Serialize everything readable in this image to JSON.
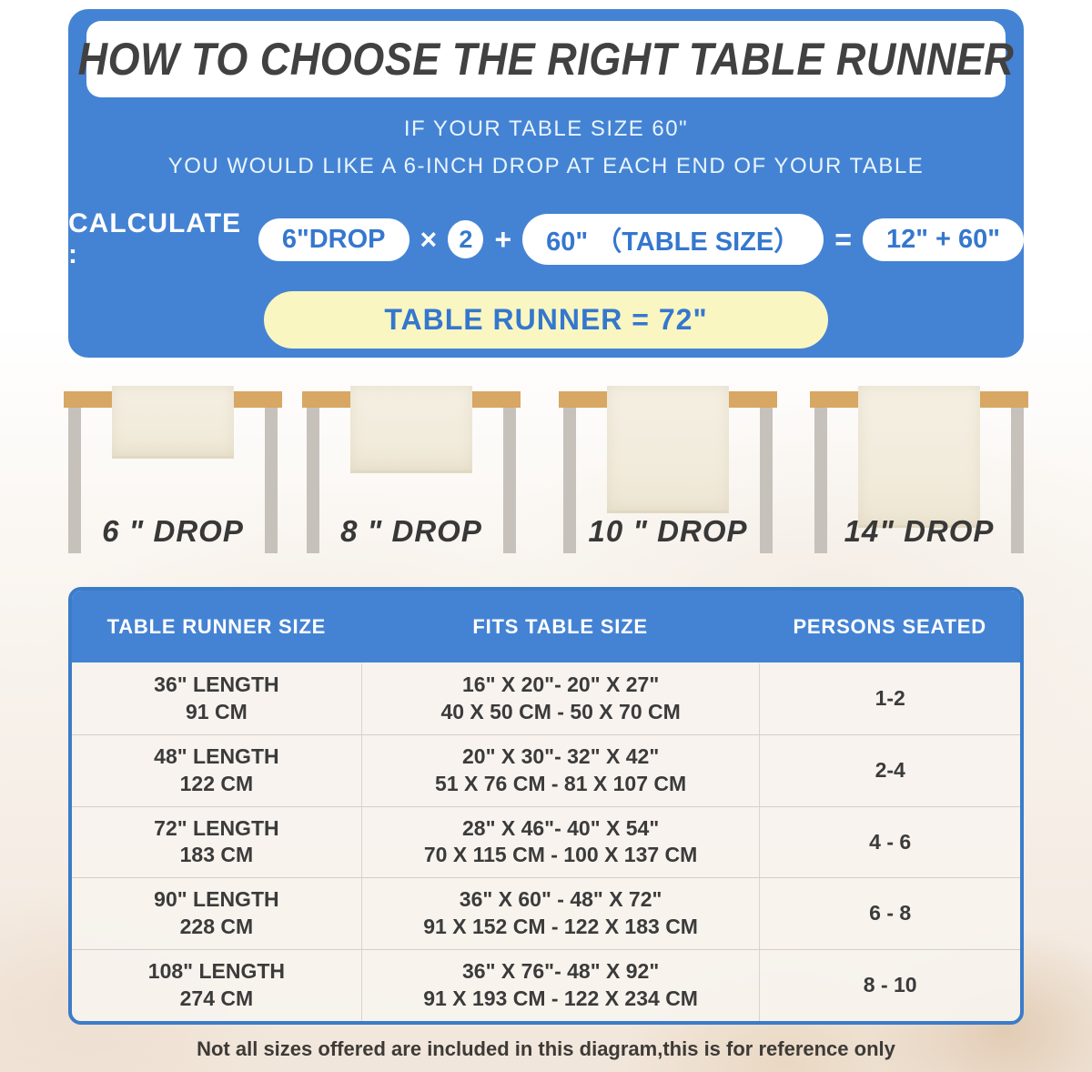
{
  "page": {
    "title": "HOW TO CHOOSE THE RIGHT TABLE RUNNER",
    "subtitle_line1": "IF YOUR TABLE SIZE 60\"",
    "subtitle_line2": "YOU WOULD LIKE A 6-INCH DROP AT EACH END OF YOUR TABLE",
    "note": "Not all sizes offered are included in this diagram,this is for reference only"
  },
  "calculation": {
    "label": "CALCULATE :",
    "drop_value": "6\"DROP",
    "times": "×",
    "multiplier": "2",
    "plus": "+",
    "table_size": "60\" （TABLE SIZE）",
    "equals": "=",
    "sum": "12\" + 60\"",
    "result": "TABLE RUNNER = 72\""
  },
  "drops": [
    {
      "label": "6 \" DROP"
    },
    {
      "label": "8 \" DROP"
    },
    {
      "label": "10 \" DROP"
    },
    {
      "label": "14\" DROP"
    }
  ],
  "size_table": {
    "headers": [
      "TABLE RUNNER SIZE",
      "FITS TABLE SIZE",
      "PERSONS SEATED"
    ],
    "rows": [
      {
        "runner_in": "36\" LENGTH",
        "runner_cm": "91 CM",
        "fits_in": "16\" X 20\"- 20\" X 27\"",
        "fits_cm": "40 X 50 CM - 50 X 70 CM",
        "persons": "1-2"
      },
      {
        "runner_in": "48\" LENGTH",
        "runner_cm": "122 CM",
        "fits_in": "20\" X 30\"- 32\" X 42\"",
        "fits_cm": "51 X 76 CM - 81 X 107 CM",
        "persons": "2-4"
      },
      {
        "runner_in": "72\" LENGTH",
        "runner_cm": "183 CM",
        "fits_in": "28\" X 46\"- 40\" X 54\"",
        "fits_cm": "70 X 115 CM - 100 X 137 CM",
        "persons": "4 - 6"
      },
      {
        "runner_in": "90\" LENGTH",
        "runner_cm": "228 CM",
        "fits_in": "36\" X 60\" - 48\" X 72\"",
        "fits_cm": "91 X 152 CM - 122 X 183 CM",
        "persons": "6 - 8"
      },
      {
        "runner_in": "108\" LENGTH",
        "runner_cm": "274 CM",
        "fits_in": "36\" X 76\"- 48\" X 92\"",
        "fits_cm": "91 X 193 CM - 122 X 234 CM",
        "persons": "8 - 10"
      }
    ]
  },
  "colors": {
    "panel_blue": "#4483d4",
    "table_border_blue": "#3b7cc9",
    "pill_text_blue": "#3577ce",
    "result_yellow": "#f9f6c1",
    "tabletop_tan": "#d7a763",
    "leg_gray": "#c7c1bb",
    "runner_cream": "#f2edde",
    "dark_text": "#3b3b3b"
  }
}
